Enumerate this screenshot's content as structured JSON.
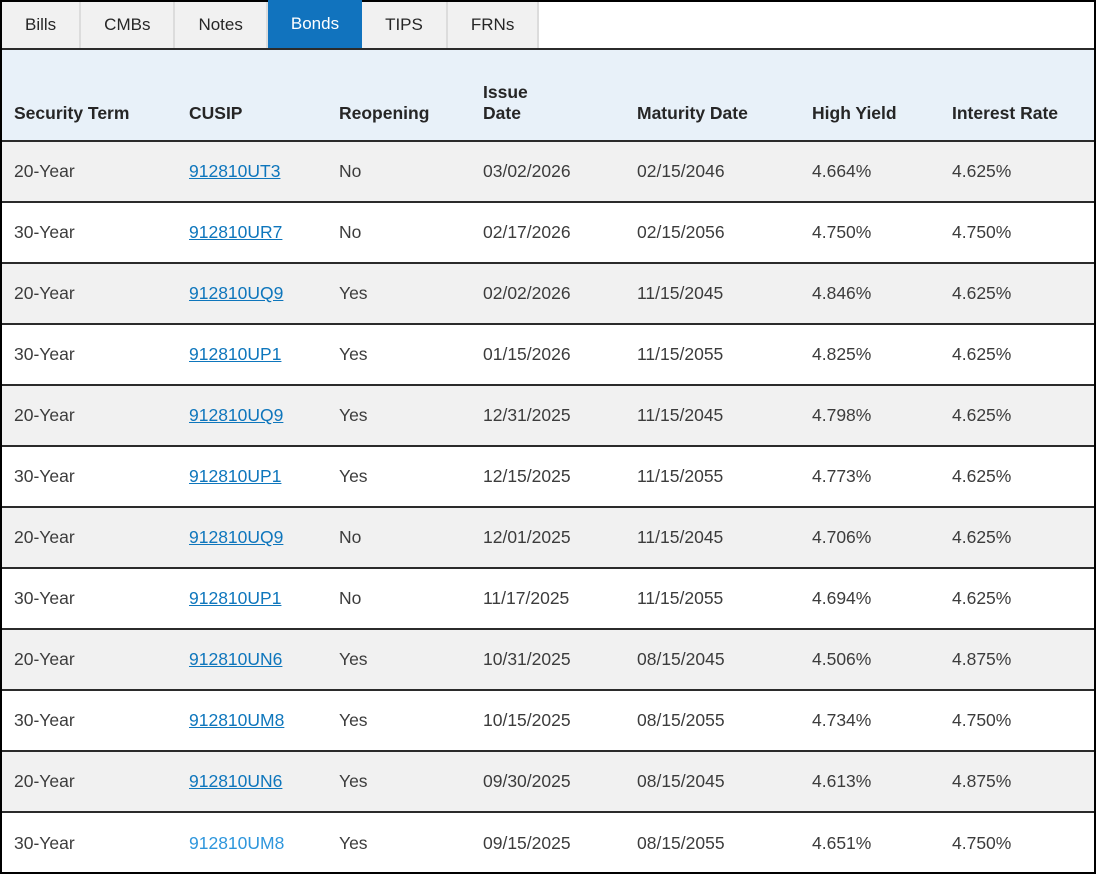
{
  "tabs": [
    {
      "label": "Bills",
      "active": false
    },
    {
      "label": "CMBs",
      "active": false
    },
    {
      "label": "Notes",
      "active": false
    },
    {
      "label": "Bonds",
      "active": true
    },
    {
      "label": "TIPS",
      "active": false
    },
    {
      "label": "FRNs",
      "active": false
    }
  ],
  "table": {
    "columns": [
      "Security Term",
      "CUSIP",
      "Reopening",
      "Issue\nDate",
      "Maturity Date",
      "High Yield",
      "Interest Rate"
    ],
    "rows": [
      {
        "security_term": "20-Year",
        "cusip": "912810UT3",
        "reopening": "No",
        "issue_date": "03/02/2026",
        "maturity_date": "02/15/2046",
        "high_yield": "4.664%",
        "interest_rate": "4.625%",
        "link_underline": true
      },
      {
        "security_term": "30-Year",
        "cusip": "912810UR7",
        "reopening": "No",
        "issue_date": "02/17/2026",
        "maturity_date": "02/15/2056",
        "high_yield": "4.750%",
        "interest_rate": "4.750%",
        "link_underline": true
      },
      {
        "security_term": "20-Year",
        "cusip": "912810UQ9",
        "reopening": "Yes",
        "issue_date": "02/02/2026",
        "maturity_date": "11/15/2045",
        "high_yield": "4.846%",
        "interest_rate": "4.625%",
        "link_underline": true
      },
      {
        "security_term": "30-Year",
        "cusip": "912810UP1",
        "reopening": "Yes",
        "issue_date": "01/15/2026",
        "maturity_date": "11/15/2055",
        "high_yield": "4.825%",
        "interest_rate": "4.625%",
        "link_underline": true
      },
      {
        "security_term": "20-Year",
        "cusip": "912810UQ9",
        "reopening": "Yes",
        "issue_date": "12/31/2025",
        "maturity_date": "11/15/2045",
        "high_yield": "4.798%",
        "interest_rate": "4.625%",
        "link_underline": true
      },
      {
        "security_term": "30-Year",
        "cusip": "912810UP1",
        "reopening": "Yes",
        "issue_date": "12/15/2025",
        "maturity_date": "11/15/2055",
        "high_yield": "4.773%",
        "interest_rate": "4.625%",
        "link_underline": true
      },
      {
        "security_term": "20-Year",
        "cusip": "912810UQ9",
        "reopening": "No",
        "issue_date": "12/01/2025",
        "maturity_date": "11/15/2045",
        "high_yield": "4.706%",
        "interest_rate": "4.625%",
        "link_underline": true
      },
      {
        "security_term": "30-Year",
        "cusip": "912810UP1",
        "reopening": "No",
        "issue_date": "11/17/2025",
        "maturity_date": "11/15/2055",
        "high_yield": "4.694%",
        "interest_rate": "4.625%",
        "link_underline": true
      },
      {
        "security_term": "20-Year",
        "cusip": "912810UN6",
        "reopening": "Yes",
        "issue_date": "10/31/2025",
        "maturity_date": "08/15/2045",
        "high_yield": "4.506%",
        "interest_rate": "4.875%",
        "link_underline": true
      },
      {
        "security_term": "30-Year",
        "cusip": "912810UM8",
        "reopening": "Yes",
        "issue_date": "10/15/2025",
        "maturity_date": "08/15/2055",
        "high_yield": "4.734%",
        "interest_rate": "4.750%",
        "link_underline": true
      },
      {
        "security_term": "20-Year",
        "cusip": "912810UN6",
        "reopening": "Yes",
        "issue_date": "09/30/2025",
        "maturity_date": "08/15/2045",
        "high_yield": "4.613%",
        "interest_rate": "4.875%",
        "link_underline": true
      },
      {
        "security_term": "30-Year",
        "cusip": "912810UM8",
        "reopening": "Yes",
        "issue_date": "09/15/2025",
        "maturity_date": "08/15/2055",
        "high_yield": "4.651%",
        "interest_rate": "4.750%",
        "link_underline": false
      }
    ]
  },
  "colors": {
    "active_tab_bg": "#1173be",
    "active_tab_text": "#ffffff",
    "header_bg": "#e8f1f9",
    "stripe_bg": "#f1f1f1",
    "link": "#0e76bc",
    "link_no_underline": "#2e96dc",
    "row_rule": "#2b2b2b"
  }
}
